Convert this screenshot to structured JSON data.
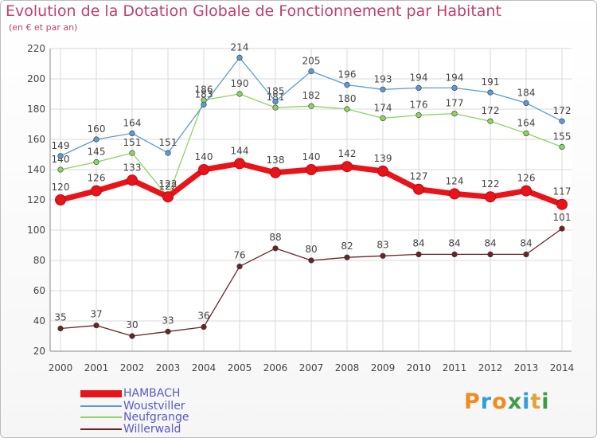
{
  "chart_data": {
    "type": "line",
    "title": "Evolution de la Dotation Globale de Fonctionnement par Habitant",
    "subtitle": "(en € et par an)",
    "x": [
      "2000",
      "2001",
      "2002",
      "2003",
      "2004",
      "2005",
      "2006",
      "2007",
      "2008",
      "2009",
      "2010",
      "2011",
      "2012",
      "2013",
      "2014"
    ],
    "y_ticks": [
      20,
      40,
      60,
      80,
      100,
      120,
      140,
      160,
      180,
      200,
      220
    ],
    "ylim": [
      20,
      220
    ],
    "grid": true,
    "legend_position": "bottom-left",
    "series": [
      {
        "name": "HAMBACH",
        "color": "#e8141a",
        "values": [
          120,
          126,
          133,
          122,
          140,
          144,
          138,
          140,
          142,
          139,
          127,
          124,
          122,
          126,
          117
        ]
      },
      {
        "name": "Woustviller",
        "color": "#5b9bd2",
        "values": [
          149,
          160,
          164,
          151,
          183,
          214,
          185,
          205,
          196,
          193,
          194,
          194,
          191,
          184,
          172
        ]
      },
      {
        "name": "Neufgrange",
        "color": "#8dd35f",
        "values": [
          140,
          145,
          151,
          122,
          186,
          190,
          181,
          182,
          180,
          174,
          176,
          177,
          172,
          164,
          155
        ]
      },
      {
        "name": "Willerwald",
        "color": "#6b2426",
        "values": [
          35,
          37,
          30,
          33,
          36,
          76,
          88,
          80,
          82,
          83,
          84,
          84,
          84,
          84,
          101
        ]
      }
    ]
  },
  "logo": {
    "text": "Proxiti"
  }
}
